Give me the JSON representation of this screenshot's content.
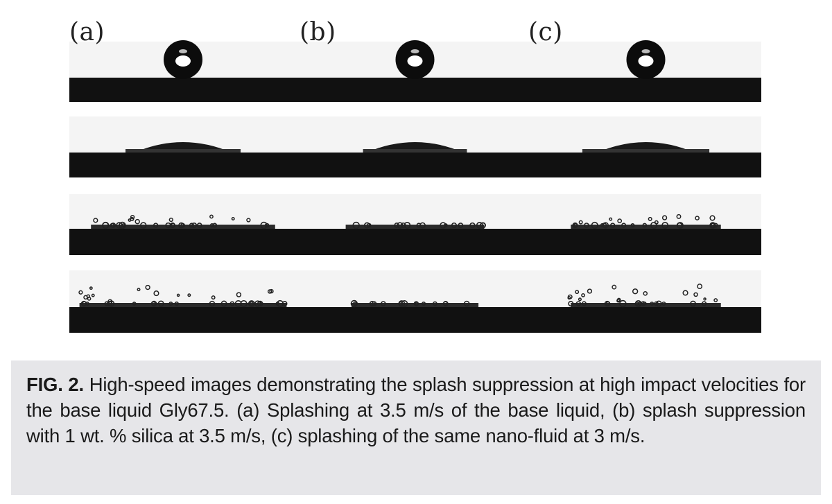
{
  "figure": {
    "panel_labels": [
      "(a)",
      "(b)",
      "(c)"
    ],
    "columns": [
      {
        "id": "a",
        "frames": [
          {
            "stage": "drop",
            "spread": 0
          },
          {
            "stage": "lamella",
            "spread": 0.5
          },
          {
            "stage": "spread",
            "spread": 0.8
          },
          {
            "stage": "late",
            "spread": 0.9
          }
        ],
        "splashing": true
      },
      {
        "id": "b",
        "frames": [
          {
            "stage": "drop",
            "spread": 0
          },
          {
            "stage": "lamella",
            "spread": 0.45
          },
          {
            "stage": "spread",
            "spread": 0.6
          },
          {
            "stage": "late",
            "spread": 0.55
          }
        ],
        "splashing": false
      },
      {
        "id": "c",
        "frames": [
          {
            "stage": "drop",
            "spread": 0
          },
          {
            "stage": "lamella",
            "spread": 0.55
          },
          {
            "stage": "spread",
            "spread": 0.65
          },
          {
            "stage": "late",
            "spread": 0.65
          }
        ],
        "splashing": true
      }
    ]
  },
  "caption": {
    "label": "FIG. 2.",
    "text": " High-speed images demonstrating the splash suppression at high impact velocities for the base liquid Gly67.5. (a) Splashing at 3.5 m/s of the base liquid, (b) splash suppression with 1 wt. % silica at 3.5 m/s, (c) splashing of the same nano-fluid at 3 m/s."
  },
  "colors": {
    "substrate": "#111111",
    "background_frame": "#f4f4f4",
    "caption_box": "#e6e6e9"
  }
}
